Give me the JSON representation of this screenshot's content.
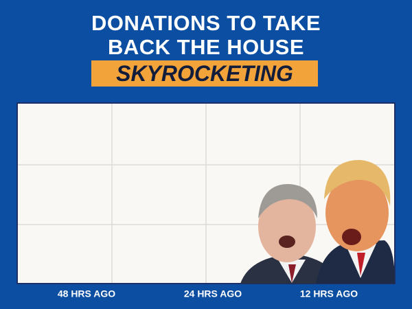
{
  "chart_data": {
    "type": "line",
    "title": "DONATIONS TO TAKE BACK THE HOUSE",
    "subtitle": "SKYROCKETING",
    "categories": [
      "48 HRS AGO",
      "24 HRS AGO",
      "12 HRS AGO"
    ],
    "grid": true
  }
}
